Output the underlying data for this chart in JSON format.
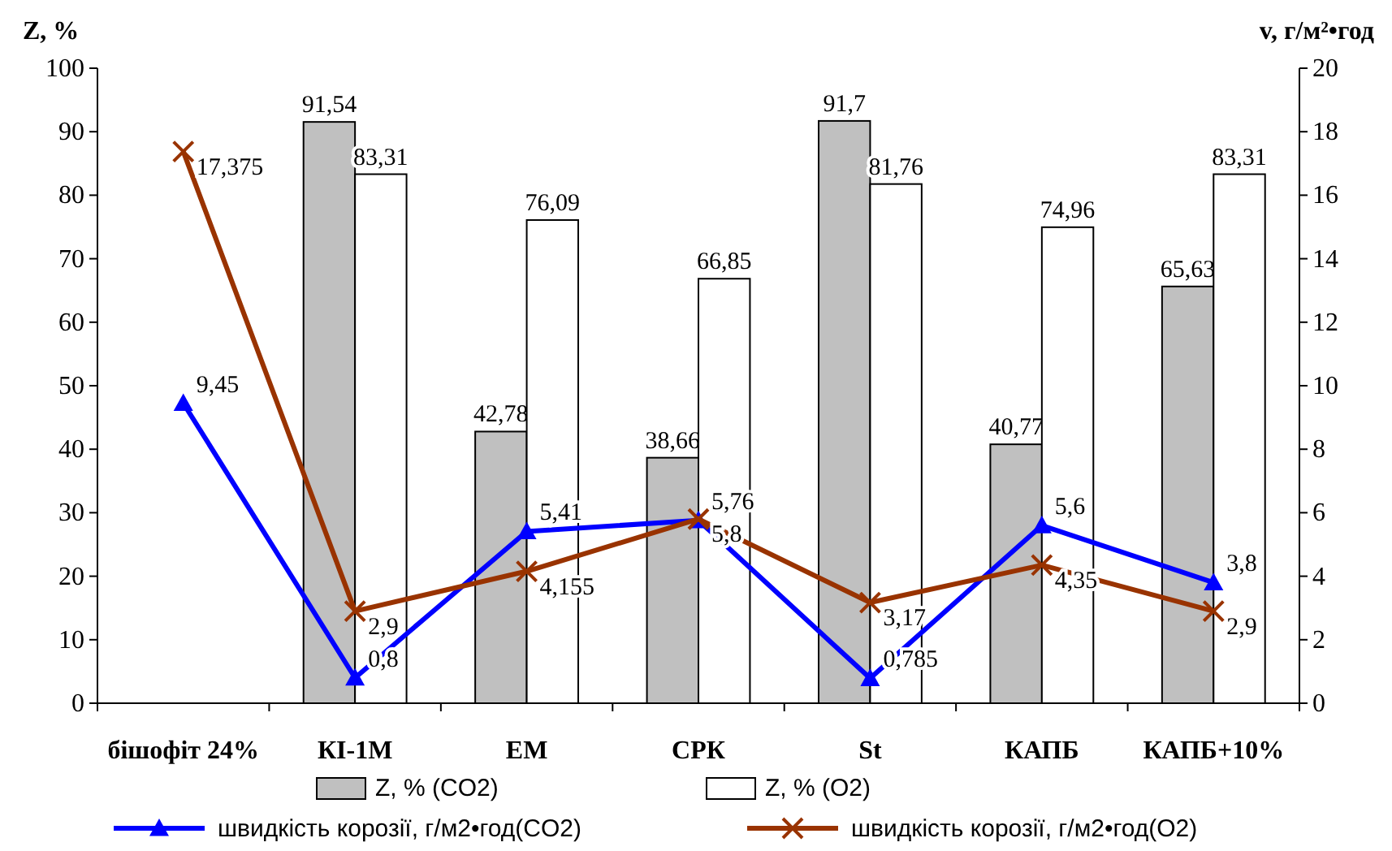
{
  "chart_data": {
    "type": "bar",
    "categories": [
      "бішофіт 24%",
      "КІ-1М",
      "ЕМ",
      "СРК",
      "St",
      "КАПБ",
      "КАПБ+10%"
    ],
    "ylabel": "Z, %",
    "y2label": "v, г/м²•год",
    "ylim": [
      0,
      100
    ],
    "yticks": [
      0,
      10,
      20,
      30,
      40,
      50,
      60,
      70,
      80,
      90,
      100
    ],
    "y2lim": [
      0,
      20
    ],
    "y2ticks": [
      0,
      2,
      4,
      6,
      8,
      10,
      12,
      14,
      16,
      18,
      20
    ],
    "grid": false,
    "legend": "bottom",
    "series": [
      {
        "name": "Z, % (CO2)",
        "color": "#c0c0c0",
        "values": [
          null,
          91.54,
          42.78,
          38.66,
          91.7,
          40.77,
          65.63
        ],
        "value_labels": [
          null,
          "91,54",
          "42,78",
          "38,66",
          "91,7",
          "40,77",
          "65,63"
        ]
      },
      {
        "name": "Z, % (O2)",
        "color": "#ffffff",
        "values": [
          null,
          83.31,
          76.09,
          66.85,
          81.76,
          74.96,
          83.31
        ],
        "value_labels": [
          null,
          "83,31",
          "76,09",
          "66,85",
          "81,76",
          "74,96",
          "83,31"
        ]
      },
      {
        "name": "швидкість корозії, г/м2•год(CO2)",
        "type": "line",
        "axis": "y2",
        "marker": "triangle",
        "color": "#0000ff",
        "values": [
          9.45,
          0.8,
          5.41,
          5.76,
          0.785,
          5.6,
          3.8
        ],
        "value_labels": [
          "9,45",
          "0,8",
          "5,41",
          "5,76",
          "0,785",
          "5,6",
          "3,8"
        ]
      },
      {
        "name": "швидкість корозії, г/м2•год(O2)",
        "type": "line",
        "axis": "y2",
        "marker": "cross",
        "color": "#993300",
        "values": [
          17.375,
          2.9,
          4.155,
          5.8,
          3.17,
          4.35,
          2.9
        ],
        "value_labels": [
          "17,375",
          "2,9",
          "4,155",
          "5,8",
          "3,17",
          "4,35",
          "2,9"
        ]
      }
    ]
  }
}
